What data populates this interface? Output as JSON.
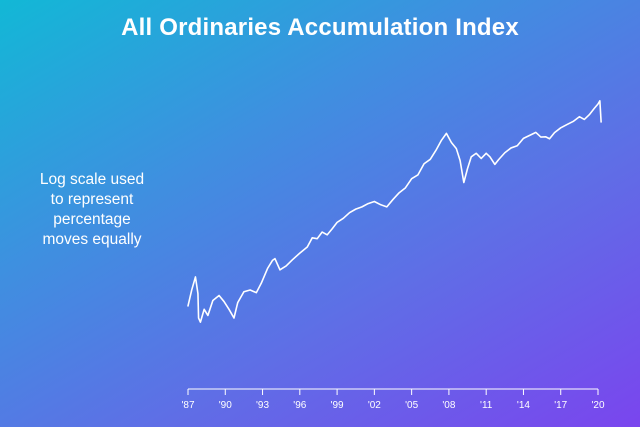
{
  "colors": {
    "line": "#ffffff",
    "bg_start": "#12b8d6",
    "bg_end": "#7a45ee"
  },
  "annotation": {
    "lines": [
      "Log scale used",
      "to represent",
      "percentage",
      "moves equally"
    ]
  },
  "chart_data": {
    "type": "line",
    "title": "All Ordinaries Accumulation Index",
    "xlabel": "",
    "ylabel": "",
    "y_scale": "log",
    "y_axis_shown": false,
    "grid": false,
    "legend": "none",
    "xlim": [
      1987,
      2020
    ],
    "ylim": [
      1000,
      100000
    ],
    "x_ticks": [
      1987,
      1990,
      1993,
      1996,
      1999,
      2002,
      2005,
      2008,
      2011,
      2014,
      2017,
      2020
    ],
    "x_tick_labels": [
      "'87",
      "'90",
      "'93",
      "'96",
      "'99",
      "'02",
      "'05",
      "'08",
      "'11",
      "'14",
      "'17",
      "'20"
    ],
    "series": [
      {
        "name": "",
        "x": [
          1987.0,
          1987.3,
          1987.6,
          1987.8,
          1987.85,
          1988.0,
          1988.3,
          1988.6,
          1989.0,
          1989.5,
          1989.9,
          1990.3,
          1990.7,
          1991.0,
          1991.5,
          1992.0,
          1992.5,
          1992.9,
          1993.4,
          1993.8,
          1994.0,
          1994.4,
          1994.9,
          1995.4,
          1996.0,
          1996.6,
          1997.0,
          1997.4,
          1997.8,
          1998.2,
          1998.6,
          1999.0,
          1999.5,
          2000.0,
          2000.5,
          2001.0,
          2001.5,
          2002.0,
          2002.5,
          2003.0,
          2003.5,
          2004.0,
          2004.5,
          2005.0,
          2005.5,
          2006.0,
          2006.5,
          2007.0,
          2007.4,
          2007.8,
          2008.2,
          2008.6,
          2008.9,
          2009.2,
          2009.5,
          2009.8,
          2010.2,
          2010.6,
          2011.0,
          2011.3,
          2011.7,
          2012.0,
          2012.5,
          2013.0,
          2013.5,
          2014.0,
          2014.5,
          2015.0,
          2015.4,
          2015.8,
          2016.1,
          2016.5,
          2017.0,
          2017.5,
          2018.0,
          2018.5,
          2018.9,
          2019.3,
          2019.7,
          2020.0,
          2020.15,
          2020.25
        ],
        "values": [
          3200,
          4000,
          4800,
          3800,
          2700,
          2550,
          3050,
          2800,
          3450,
          3700,
          3400,
          3050,
          2700,
          3350,
          3900,
          4000,
          3850,
          4400,
          5400,
          6050,
          6200,
          5300,
          5600,
          6100,
          6700,
          7300,
          8300,
          8200,
          9000,
          8650,
          9400,
          10300,
          10900,
          11800,
          12400,
          12800,
          13400,
          13800,
          13200,
          12800,
          14200,
          15600,
          16700,
          19000,
          20000,
          23400,
          24900,
          28600,
          32500,
          35800,
          31500,
          28900,
          24500,
          18000,
          21900,
          25800,
          27100,
          25200,
          27100,
          25800,
          23200,
          24800,
          27300,
          29200,
          30100,
          33400,
          34800,
          36300,
          34000,
          34100,
          33200,
          36200,
          38700,
          40500,
          42300,
          45200,
          43500,
          46500,
          50800,
          54000,
          56500,
          42000
        ]
      }
    ]
  }
}
